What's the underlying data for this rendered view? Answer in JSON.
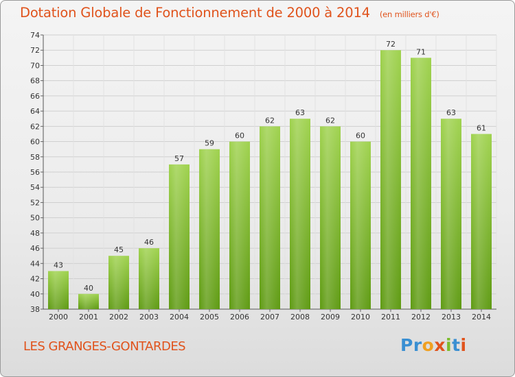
{
  "header": {
    "title": "Dotation Globale de Fonctionnement de 2000 à 2014",
    "unit": "(en milliers d'€)"
  },
  "commune": "LES GRANGES-GONTARDES",
  "logo": {
    "text": "Proxiti"
  },
  "colors": {
    "bar_light": "#9fd24e",
    "bar_dark": "#5e9a12",
    "title": "#e0531c"
  },
  "chart_data": {
    "type": "bar",
    "title": "Dotation Globale de Fonctionnement de 2000 à 2014",
    "xlabel": "",
    "ylabel": "en milliers d'€",
    "categories": [
      "2000",
      "2001",
      "2002",
      "2003",
      "2004",
      "2005",
      "2006",
      "2007",
      "2008",
      "2009",
      "2010",
      "2011",
      "2012",
      "2013",
      "2014"
    ],
    "values": [
      43,
      40,
      45,
      46,
      57,
      59,
      60,
      62,
      63,
      62,
      60,
      72,
      71,
      63,
      61
    ],
    "ylim": [
      38,
      74
    ],
    "yticks": [
      38,
      40,
      42,
      44,
      46,
      48,
      50,
      52,
      54,
      56,
      58,
      60,
      62,
      64,
      66,
      68,
      70,
      72,
      74
    ],
    "grid": true
  }
}
